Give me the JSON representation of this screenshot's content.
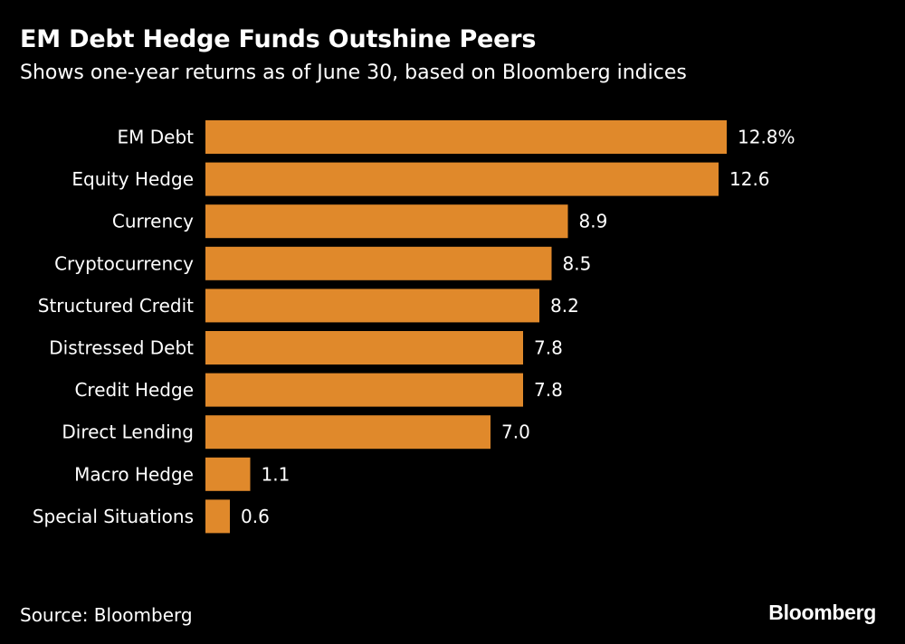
{
  "title": "EM Debt Hedge Funds Outshine Peers",
  "subtitle": "Shows one-year returns as of June 30, based on Bloomberg indices",
  "source": "Source: Bloomberg",
  "brand": "Bloomberg",
  "colors": {
    "background": "#000000",
    "bar": "#e0892b",
    "text": "#ffffff"
  },
  "chart_data": {
    "type": "bar",
    "orientation": "horizontal",
    "title": "EM Debt Hedge Funds Outshine Peers",
    "subtitle": "Shows one-year returns as of June 30, based on Bloomberg indices",
    "xlabel": "",
    "ylabel": "",
    "grid": false,
    "unit": "%",
    "xlim": [
      0,
      12.8
    ],
    "categories": [
      "EM Debt",
      "Equity Hedge",
      "Currency",
      "Cryptocurrency",
      "Structured Credit",
      "Distressed Debt",
      "Credit Hedge",
      "Direct Lending",
      "Macro Hedge",
      "Special Situations"
    ],
    "values": [
      12.8,
      12.6,
      8.9,
      8.5,
      8.2,
      7.8,
      7.8,
      7.0,
      1.1,
      0.6
    ],
    "value_labels": [
      "12.8%",
      "12.6",
      "8.9",
      "8.5",
      "8.2",
      "7.8",
      "7.8",
      "7.0",
      "1.1",
      "0.6"
    ]
  }
}
